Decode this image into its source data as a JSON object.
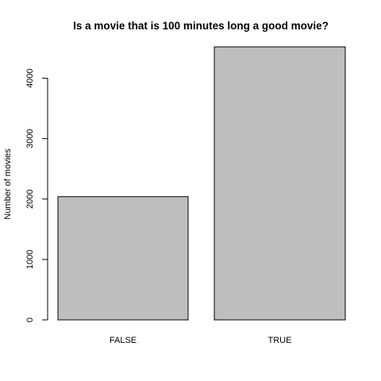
{
  "chart_data": {
    "type": "bar",
    "title": "Is a movie that is 100 minutes long a good movie?",
    "xlabel": "",
    "ylabel": "Number of movies",
    "categories": [
      "FALSE",
      "TRUE"
    ],
    "values": [
      2040,
      4520
    ],
    "ylim": [
      0,
      4520
    ],
    "yticks": [
      0,
      1000,
      2000,
      3000,
      4000
    ],
    "bar_color": "#bebebe",
    "grid": false,
    "legend": "none"
  }
}
